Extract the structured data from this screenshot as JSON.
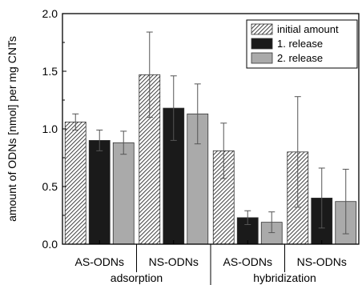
{
  "chart_data": {
    "type": "bar",
    "ylabel": "amount of ODNs [nmol] per mg CNTs",
    "ylim": [
      0,
      2.0
    ],
    "yticks": [
      "0.0",
      "0.5",
      "1.0",
      "1.5",
      "2.0"
    ],
    "categories": [
      "AS-ODNs",
      "NS-ODNs",
      "AS-ODNs",
      "NS-ODNs"
    ],
    "groups": [
      {
        "label": "adsorption",
        "categories": [
          0,
          1
        ]
      },
      {
        "label": "hybridization",
        "categories": [
          2,
          3
        ]
      }
    ],
    "series": [
      {
        "name": "initial amount",
        "pattern": "hatched",
        "color": "#ffffff",
        "values": [
          1.06,
          1.47,
          0.81,
          0.8
        ],
        "errors": [
          0.07,
          0.37,
          0.24,
          0.48
        ]
      },
      {
        "name": "1. release",
        "pattern": "solid",
        "color": "#1a1a1a",
        "values": [
          0.9,
          1.18,
          0.23,
          0.4
        ],
        "errors": [
          0.09,
          0.28,
          0.06,
          0.26
        ]
      },
      {
        "name": "2. release",
        "pattern": "solid",
        "color": "#aaaaaa",
        "values": [
          0.88,
          1.13,
          0.19,
          0.37
        ],
        "errors": [
          0.1,
          0.26,
          0.09,
          0.28
        ]
      }
    ],
    "legend_position": "top-right",
    "grid": false
  }
}
